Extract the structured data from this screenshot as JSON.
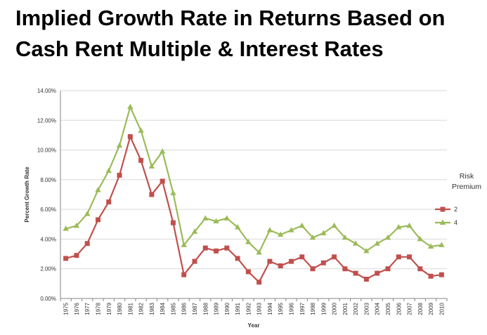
{
  "title_line1": "Implied Growth Rate in Returns Based on",
  "title_line2": "Cash Rent Multiple & Interest Rates",
  "colors": {
    "series_2": "#c0504d",
    "series_4": "#9bbb59",
    "grid": "#d9d9d9",
    "axis": "#868686"
  },
  "chart_data": {
    "type": "line",
    "xlabel": "Year",
    "ylabel": "Percent Growth Rate",
    "ylim": [
      0,
      14
    ],
    "y_ticks": [
      "0.00%",
      "2.00%",
      "4.00%",
      "6.00%",
      "8.00%",
      "10.00%",
      "12.00%",
      "14.00%"
    ],
    "grid": true,
    "legend_title": [
      "Risk",
      "Premium"
    ],
    "legend_position": "right",
    "categories": [
      "1975",
      "1976",
      "1977",
      "1978",
      "1979",
      "1980",
      "1981",
      "1982",
      "1983",
      "1984",
      "1985",
      "1986",
      "1987",
      "1988",
      "1989",
      "1990",
      "1991",
      "1992",
      "1993",
      "1994",
      "1995",
      "1996",
      "1997",
      "1998",
      "1999",
      "2000",
      "2001",
      "2002",
      "2003",
      "2004",
      "2005",
      "2006",
      "2007",
      "2008",
      "2009",
      "2010"
    ],
    "series": [
      {
        "name": "2",
        "marker": "square",
        "color": "#c0504d",
        "values": [
          2.7,
          2.9,
          3.7,
          5.3,
          6.5,
          8.3,
          10.9,
          9.3,
          7.0,
          7.9,
          5.1,
          1.6,
          2.5,
          3.4,
          3.2,
          3.4,
          2.7,
          1.8,
          1.1,
          2.5,
          2.2,
          2.5,
          2.8,
          2.0,
          2.4,
          2.8,
          2.0,
          1.7,
          1.3,
          1.7,
          2.0,
          2.8,
          2.8,
          2.0,
          1.5,
          1.6
        ]
      },
      {
        "name": "4",
        "marker": "triangle",
        "color": "#9bbb59",
        "values": [
          4.7,
          4.9,
          5.7,
          7.3,
          8.6,
          10.3,
          12.9,
          11.3,
          8.9,
          9.9,
          7.1,
          3.6,
          4.5,
          5.4,
          5.2,
          5.4,
          4.8,
          3.8,
          3.1,
          4.6,
          4.3,
          4.6,
          4.9,
          4.1,
          4.4,
          4.9,
          4.1,
          3.7,
          3.2,
          3.7,
          4.1,
          4.8,
          4.9,
          4.0,
          3.5,
          3.6
        ]
      }
    ]
  }
}
